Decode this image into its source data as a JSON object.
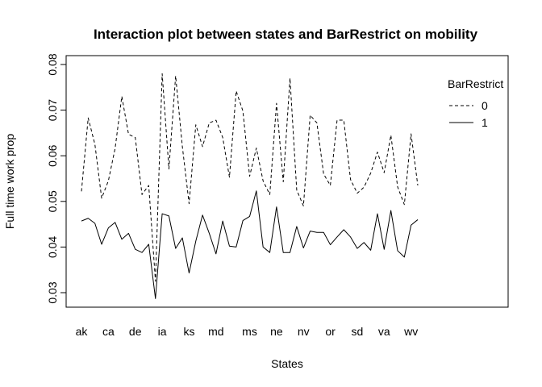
{
  "chart_data": {
    "type": "line",
    "title": "Interaction plot between states and BarRestrict on mobility",
    "xlabel": "States",
    "ylabel": "Full time work prop",
    "ylim": [
      0.03,
      0.08
    ],
    "yticks": [
      "0.03",
      "0.04",
      "0.05",
      "0.06",
      "0.07",
      "0.08"
    ],
    "xtick_labels": [
      {
        "index": 1,
        "label": "ak"
      },
      {
        "index": 5,
        "label": "ca"
      },
      {
        "index": 9,
        "label": "de"
      },
      {
        "index": 13,
        "label": "ia"
      },
      {
        "index": 17,
        "label": "ks"
      },
      {
        "index": 21,
        "label": "md"
      },
      {
        "index": 26,
        "label": "ms"
      },
      {
        "index": 30,
        "label": "ne"
      },
      {
        "index": 34,
        "label": "nv"
      },
      {
        "index": 38,
        "label": "or"
      },
      {
        "index": 42,
        "label": "sd"
      },
      {
        "index": 46,
        "label": "va"
      },
      {
        "index": 50,
        "label": "wv"
      }
    ],
    "x": [
      1,
      2,
      3,
      4,
      5,
      6,
      7,
      8,
      9,
      10,
      11,
      12,
      13,
      14,
      15,
      16,
      17,
      18,
      19,
      20,
      21,
      22,
      23,
      24,
      25,
      26,
      27,
      28,
      29,
      30,
      31,
      32,
      33,
      34,
      35,
      36,
      37,
      38,
      39,
      40,
      41,
      42,
      43,
      44,
      45,
      46,
      47,
      48,
      49,
      50,
      51
    ],
    "legend": {
      "title": "BarRestrict",
      "position": "top-right"
    },
    "grid": false,
    "series": [
      {
        "name": "0",
        "dash": "dashed",
        "values": [
          0.0522,
          0.0683,
          0.0625,
          0.0507,
          0.0545,
          0.0616,
          0.073,
          0.0647,
          0.064,
          0.0515,
          0.0535,
          0.0325,
          0.078,
          0.0571,
          0.0775,
          0.062,
          0.0495,
          0.0668,
          0.062,
          0.0672,
          0.0678,
          0.064,
          0.0553,
          0.0742,
          0.0698,
          0.0555,
          0.0617,
          0.0545,
          0.0515,
          0.0715,
          0.0543,
          0.077,
          0.0525,
          0.049,
          0.0689,
          0.0672,
          0.056,
          0.0535,
          0.0678,
          0.0678,
          0.0548,
          0.0518,
          0.0531,
          0.0562,
          0.0608,
          0.0563,
          0.0645,
          0.0532,
          0.0493,
          0.0648,
          0.0535
        ]
      },
      {
        "name": "1",
        "dash": "solid",
        "values": [
          0.0457,
          0.0463,
          0.0452,
          0.0406,
          0.0442,
          0.0454,
          0.0417,
          0.043,
          0.0395,
          0.0388,
          0.0406,
          0.0287,
          0.0473,
          0.0468,
          0.0397,
          0.042,
          0.0343,
          0.0413,
          0.047,
          0.043,
          0.0385,
          0.0457,
          0.0402,
          0.04,
          0.0458,
          0.0467,
          0.0523,
          0.04,
          0.0388,
          0.0488,
          0.0388,
          0.0388,
          0.0445,
          0.0398,
          0.0435,
          0.0432,
          0.0432,
          0.0405,
          0.0422,
          0.0438,
          0.0422,
          0.0397,
          0.041,
          0.0393,
          0.0473,
          0.0395,
          0.048,
          0.0392,
          0.0378,
          0.0448,
          0.046
        ]
      }
    ]
  }
}
